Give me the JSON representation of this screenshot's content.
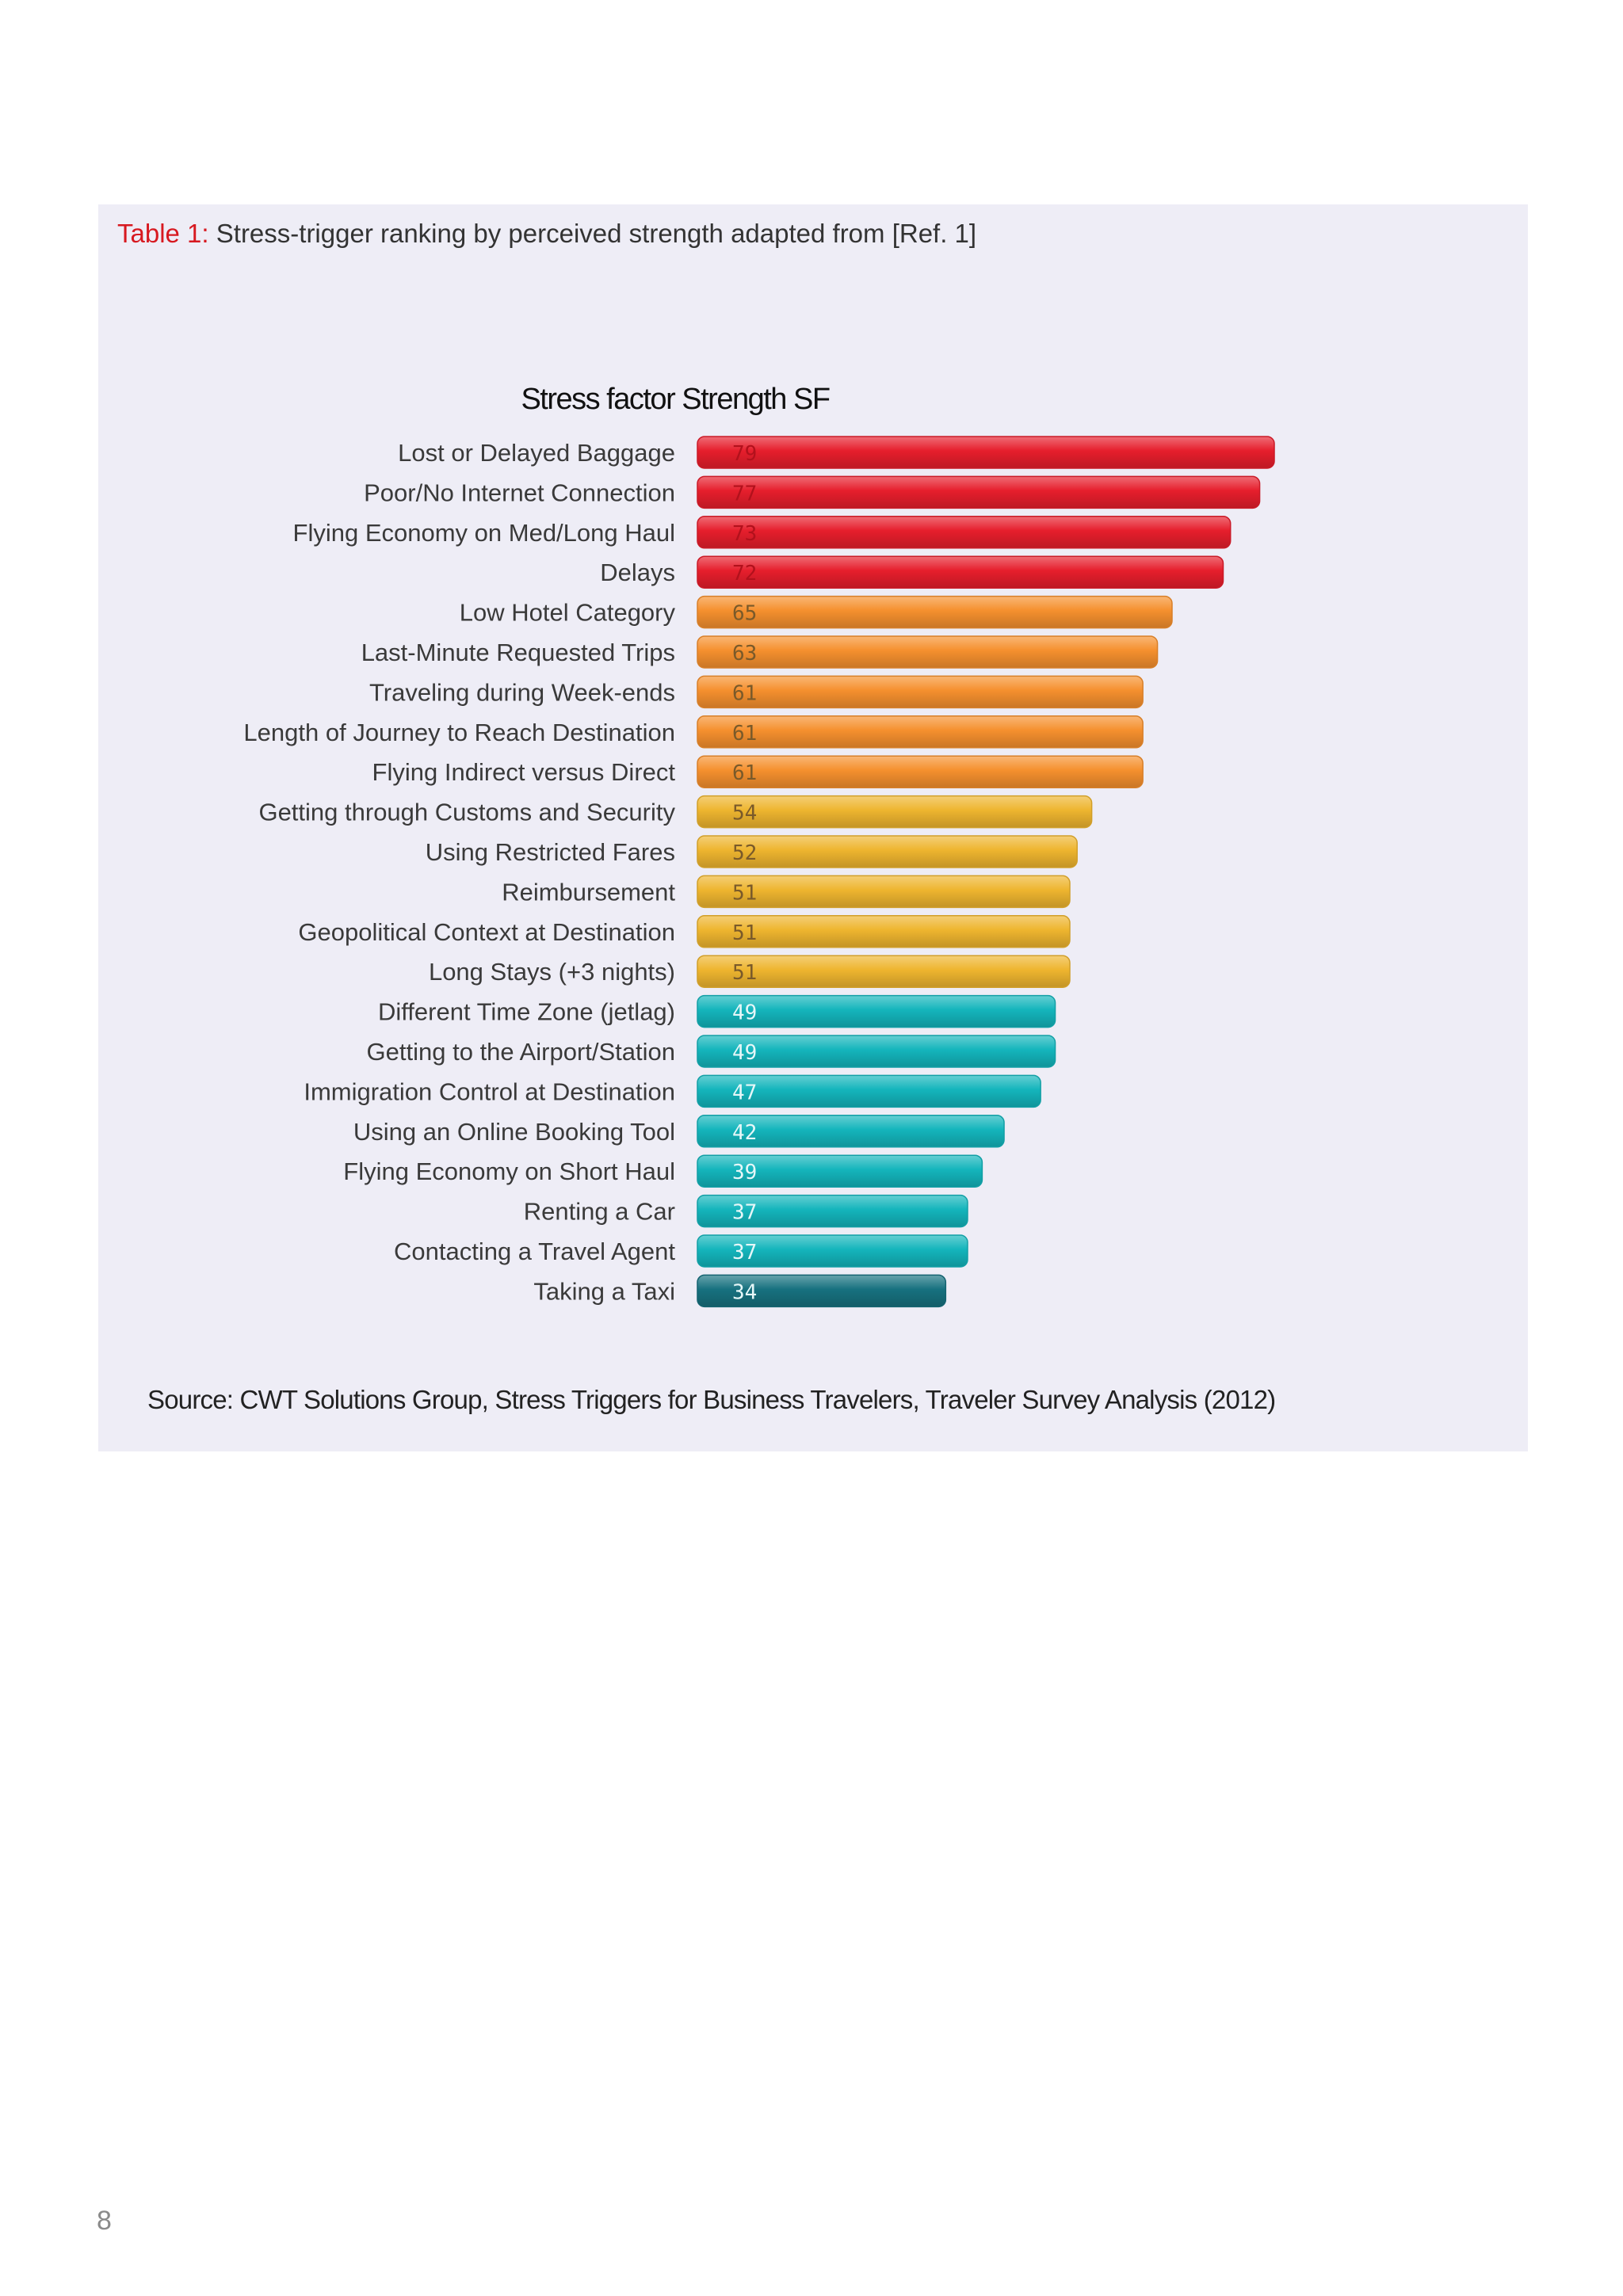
{
  "caption": {
    "label": "Table 1:",
    "text": "Stress-trigger ranking by perceived strength adapted from [Ref. 1]"
  },
  "source": "Source: CWT Solutions Group, Stress Triggers for Business Travelers, Traveler Survey Analysis (2012)",
  "page_number": "8",
  "colors": {
    "red": "#e61e2c",
    "orange": "#f5902e",
    "yellow": "#eeb52f",
    "teal": "#14b5bc",
    "dark_teal": "#17717f"
  },
  "chart_data": {
    "type": "bar",
    "orientation": "horizontal",
    "title": "Stress factor Strength SF",
    "xlabel": "",
    "ylabel": "",
    "xlim": [
      0,
      79
    ],
    "grid": false,
    "categories": [
      "Lost or Delayed Baggage",
      "Poor/No Internet Connection",
      "Flying Economy on Med/Long Haul",
      "Delays",
      "Low Hotel Category",
      "Last-Minute Requested Trips",
      "Traveling during Week-ends",
      "Length of Journey to Reach Destination",
      "Flying Indirect versus Direct",
      "Getting through Customs and Security",
      "Using Restricted Fares",
      "Reimbursement",
      "Geopolitical Context at Destination",
      "Long Stays (+3 nights)",
      "Different Time Zone (jetlag)",
      "Getting to the Airport/Station",
      "Immigration Control at Destination",
      "Using an Online Booking Tool",
      "Flying Economy on Short Haul",
      "Renting a Car",
      "Contacting a Travel Agent",
      "Taking a Taxi"
    ],
    "values": [
      79,
      77,
      73,
      72,
      65,
      63,
      61,
      61,
      61,
      54,
      52,
      51,
      51,
      51,
      49,
      49,
      47,
      42,
      39,
      37,
      37,
      34
    ],
    "groups": [
      "red",
      "red",
      "red",
      "red",
      "orange",
      "orange",
      "orange",
      "orange",
      "orange",
      "yellow",
      "yellow",
      "yellow",
      "yellow",
      "yellow",
      "teal",
      "teal",
      "teal",
      "teal",
      "teal",
      "teal",
      "teal",
      "dark_teal"
    ]
  }
}
